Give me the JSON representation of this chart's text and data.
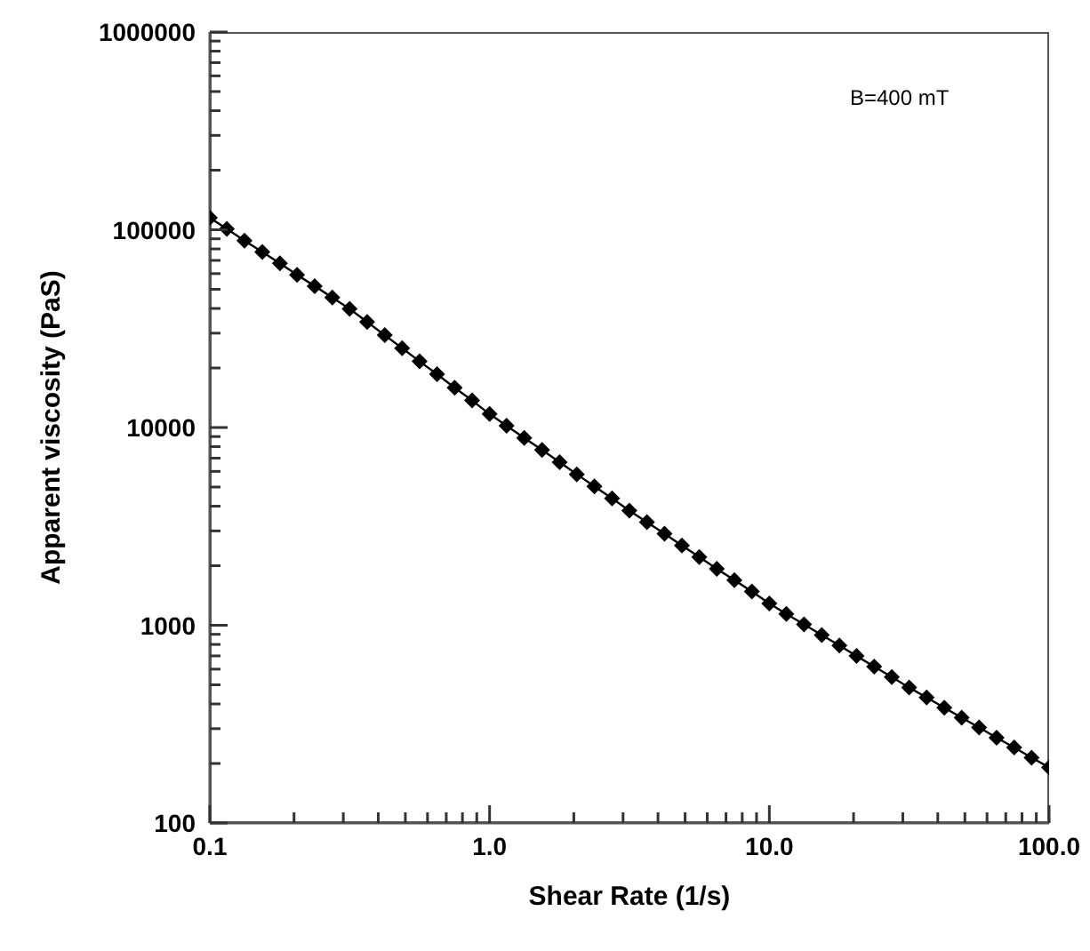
{
  "chart_data": {
    "type": "line",
    "xlabel": "Shear Rate (1/s)",
    "ylabel": "Apparent viscosity (PaS)",
    "log": "xy",
    "grid": false,
    "legend": false,
    "marker": "diamond",
    "line_style": "solid",
    "annotations": [
      "B=400 mT"
    ],
    "xlim": [
      0.1,
      100
    ],
    "ylim": [
      100,
      1000000
    ],
    "xticks": [
      {
        "value": 0.1,
        "label": "0.1"
      },
      {
        "value": 0.2,
        "label": null
      },
      {
        "value": 0.3,
        "label": null
      },
      {
        "value": 0.4,
        "label": null
      },
      {
        "value": 0.5,
        "label": null
      },
      {
        "value": 0.6,
        "label": null
      },
      {
        "value": 0.7,
        "label": null
      },
      {
        "value": 0.8,
        "label": null
      },
      {
        "value": 0.9,
        "label": null
      },
      {
        "value": 1,
        "label": "1.0"
      },
      {
        "value": 2,
        "label": null
      },
      {
        "value": 3,
        "label": null
      },
      {
        "value": 4,
        "label": null
      },
      {
        "value": 5,
        "label": null
      },
      {
        "value": 6,
        "label": null
      },
      {
        "value": 7,
        "label": null
      },
      {
        "value": 8,
        "label": null
      },
      {
        "value": 9,
        "label": null
      },
      {
        "value": 10,
        "label": "10.0"
      },
      {
        "value": 20,
        "label": null
      },
      {
        "value": 30,
        "label": null
      },
      {
        "value": 40,
        "label": null
      },
      {
        "value": 50,
        "label": null
      },
      {
        "value": 60,
        "label": null
      },
      {
        "value": 70,
        "label": null
      },
      {
        "value": 80,
        "label": null
      },
      {
        "value": 90,
        "label": null
      },
      {
        "value": 100,
        "label": "100.0"
      }
    ],
    "yticks": [
      100,
      {
        "value": 200,
        "label": null
      },
      {
        "value": 300,
        "label": null
      },
      {
        "value": 400,
        "label": null
      },
      {
        "value": 500,
        "label": null
      },
      {
        "value": 600,
        "label": null
      },
      {
        "value": 700,
        "label": null
      },
      {
        "value": 800,
        "label": null
      },
      {
        "value": 900,
        "label": null
      },
      1000,
      {
        "value": 2000,
        "label": null
      },
      {
        "value": 3000,
        "label": null
      },
      {
        "value": 4000,
        "label": null
      },
      {
        "value": 5000,
        "label": null
      },
      {
        "value": 6000,
        "label": null
      },
      {
        "value": 7000,
        "label": null
      },
      {
        "value": 8000,
        "label": null
      },
      {
        "value": 9000,
        "label": null
      },
      10000,
      {
        "value": 20000,
        "label": null
      },
      {
        "value": 30000,
        "label": null
      },
      {
        "value": 40000,
        "label": null
      },
      {
        "value": 50000,
        "label": null
      },
      {
        "value": 60000,
        "label": null
      },
      {
        "value": 70000,
        "label": null
      },
      {
        "value": 80000,
        "label": null
      },
      {
        "value": 90000,
        "label": null
      },
      100000,
      {
        "value": 200000,
        "label": null
      },
      {
        "value": 300000,
        "label": null
      },
      {
        "value": 400000,
        "label": null
      },
      {
        "value": 500000,
        "label": null
      },
      {
        "value": 600000,
        "label": null
      },
      {
        "value": 700000,
        "label": null
      },
      {
        "value": 800000,
        "label": null
      },
      {
        "value": 900000,
        "label": null
      },
      1000000
    ],
    "x": [
      0.1,
      0.115,
      0.133,
      0.154,
      0.178,
      0.205,
      0.237,
      0.274,
      0.316,
      0.365,
      0.422,
      0.487,
      0.562,
      0.649,
      0.75,
      0.866,
      1,
      1.15,
      1.33,
      1.54,
      1.78,
      2.05,
      2.37,
      2.74,
      3.16,
      3.65,
      4.22,
      4.87,
      5.62,
      6.49,
      7.5,
      8.66,
      10,
      11.5,
      13.3,
      15.4,
      17.8,
      20.5,
      23.7,
      27.4,
      31.6,
      36.5,
      42.2,
      48.7,
      56.2,
      64.9,
      75,
      86.6,
      100
    ],
    "series": [
      {
        "color": "#000000",
        "values": [
          115000,
          101000,
          88100,
          77200,
          67600,
          59200,
          51900,
          45400,
          39800,
          34200,
          29300,
          25200,
          21600,
          18600,
          15900,
          13700,
          11700,
          10200,
          8860,
          7700,
          6680,
          5800,
          5040,
          4380,
          3800,
          3320,
          2900,
          2530,
          2210,
          1930,
          1690,
          1480,
          1290,
          1140,
          1010,
          892,
          790,
          699,
          618,
          547,
          484,
          431,
          383,
          341,
          304,
          270,
          241,
          214,
          191
        ]
      }
    ]
  }
}
